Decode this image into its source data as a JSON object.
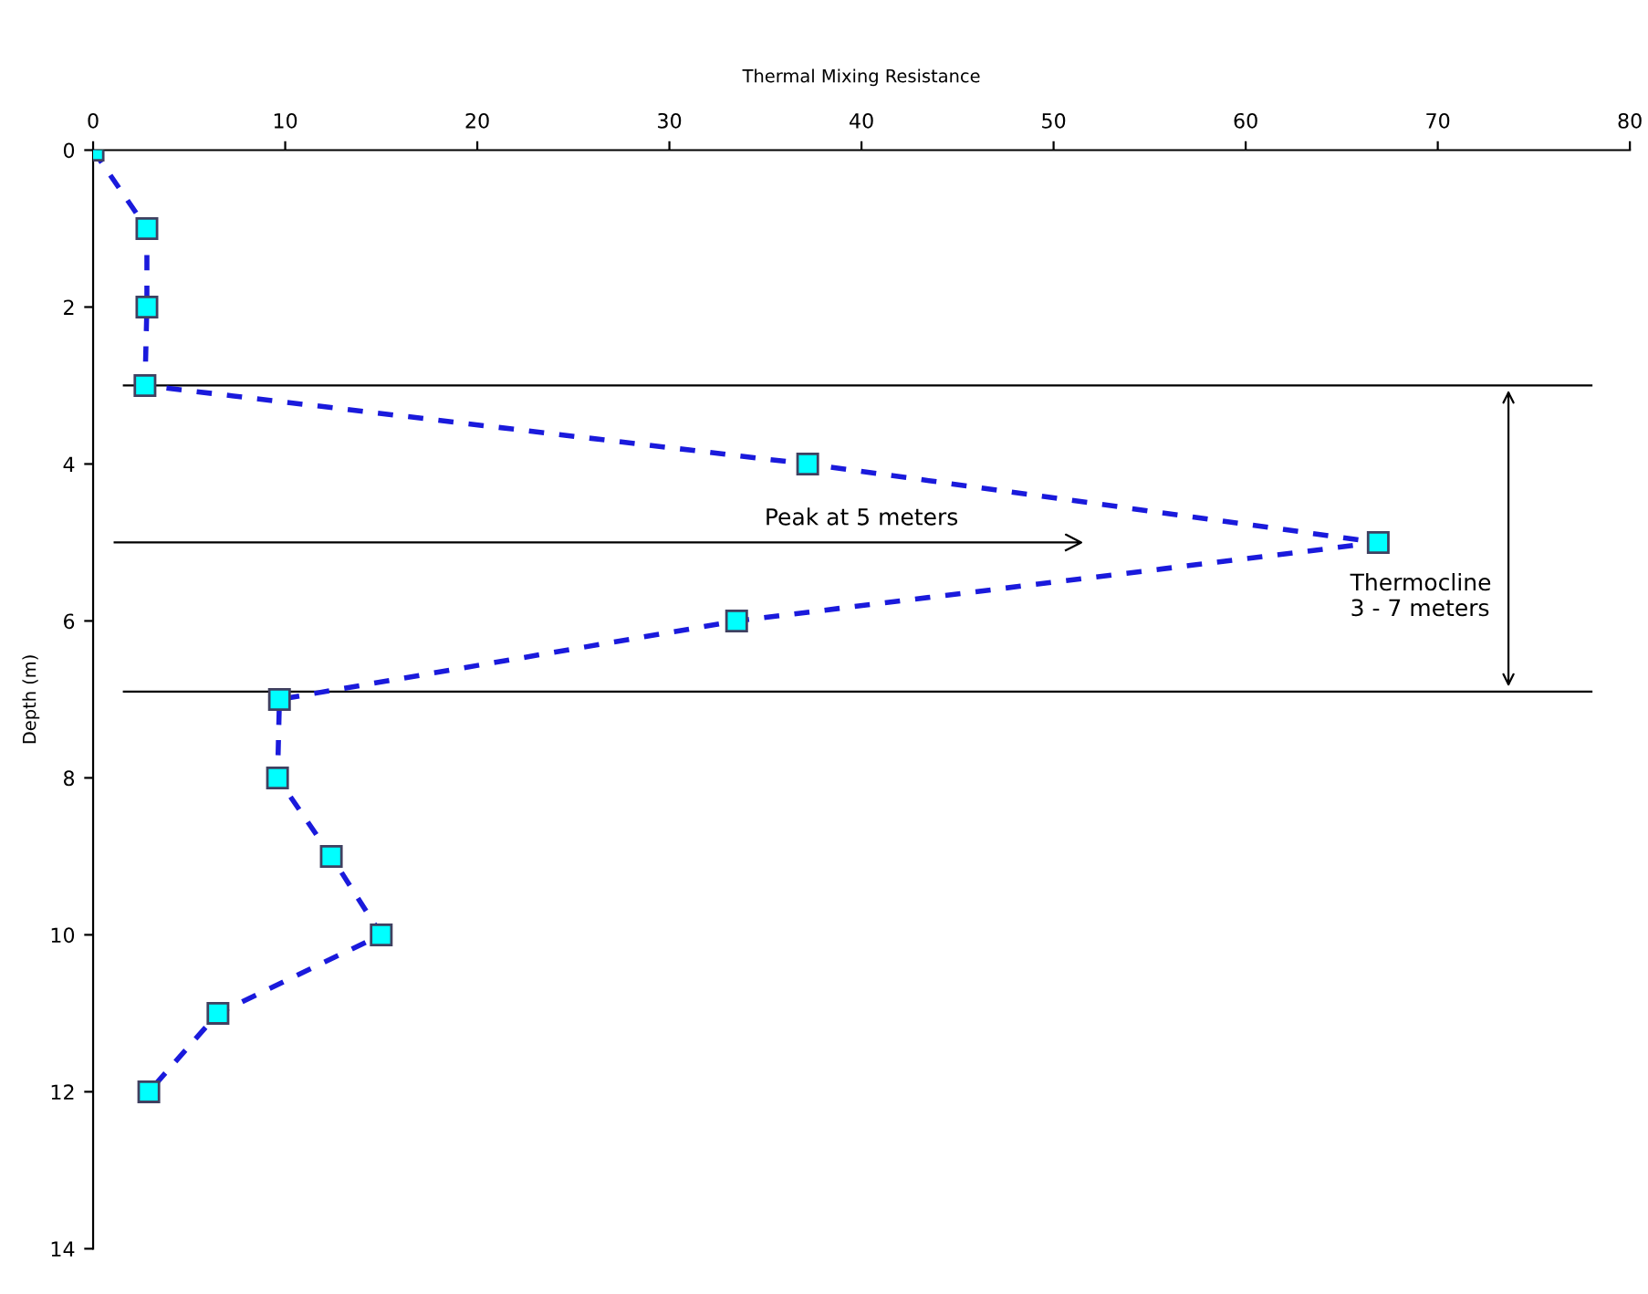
{
  "chart_data": {
    "type": "line",
    "xlabel": "Thermal Mixing Resistance",
    "ylabel": "Depth (m)",
    "series": [
      {
        "color": "#1a1adc",
        "x": [
          0,
          2.8,
          2.8,
          2.7,
          37.2,
          66.9,
          33.5,
          9.7,
          9.6,
          12.4,
          15.0,
          6.5,
          2.9
        ],
        "values": [
          0,
          1,
          2,
          3,
          4,
          5,
          6,
          7,
          8,
          9,
          10,
          11,
          12
        ]
      }
    ],
    "marker": "square",
    "line_style": "dashed",
    "xlim": [
      0,
      80
    ],
    "xticks": [
      0,
      10,
      20,
      30,
      40,
      50,
      60,
      70,
      80
    ],
    "ylim": [
      14,
      0
    ],
    "yticks": [
      0,
      2,
      4,
      6,
      8,
      10,
      12,
      14
    ],
    "ref_lines": [
      {
        "axis": "y",
        "value": 3,
        "color": "#000000"
      },
      {
        "axis": "y",
        "value": 6.9,
        "color": "#000000"
      },
      {
        "axis": "y",
        "value": 5,
        "label": "Peak at 5 meters",
        "color": "#000000"
      }
    ],
    "annotations": [
      "Thermocline\n3 - 7 meters"
    ],
    "grid": false,
    "legend": false
  }
}
